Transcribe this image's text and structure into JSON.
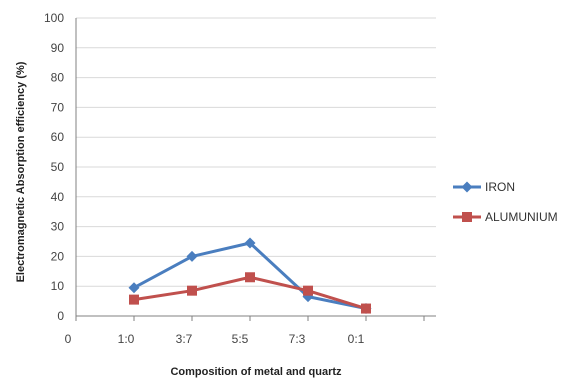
{
  "chart_data": {
    "type": "line",
    "xlabel": "Composition of metal and quartz",
    "ylabel": "Electromagnetic Absorption efficiency (%)",
    "x_ticks": [
      "0",
      "1:0",
      "3:7",
      "5:5",
      "7:3",
      "0:1"
    ],
    "categories": [
      "1:0",
      "3:7",
      "5:5",
      "7:3",
      "0:1"
    ],
    "ylim": [
      0,
      100
    ],
    "y_ticks": [
      0,
      10,
      20,
      30,
      40,
      50,
      60,
      70,
      80,
      90,
      100
    ],
    "grid": true,
    "legend_position": "right",
    "series": [
      {
        "name": "IRON",
        "values": [
          9.5,
          20,
          24.5,
          6.5,
          2.5
        ],
        "color": "#4a7ebf",
        "marker": "diamond"
      },
      {
        "name": "ALUMUNIUM",
        "values": [
          5.5,
          8.5,
          13,
          8.5,
          2.5
        ],
        "color": "#c0504d",
        "marker": "square"
      }
    ]
  }
}
